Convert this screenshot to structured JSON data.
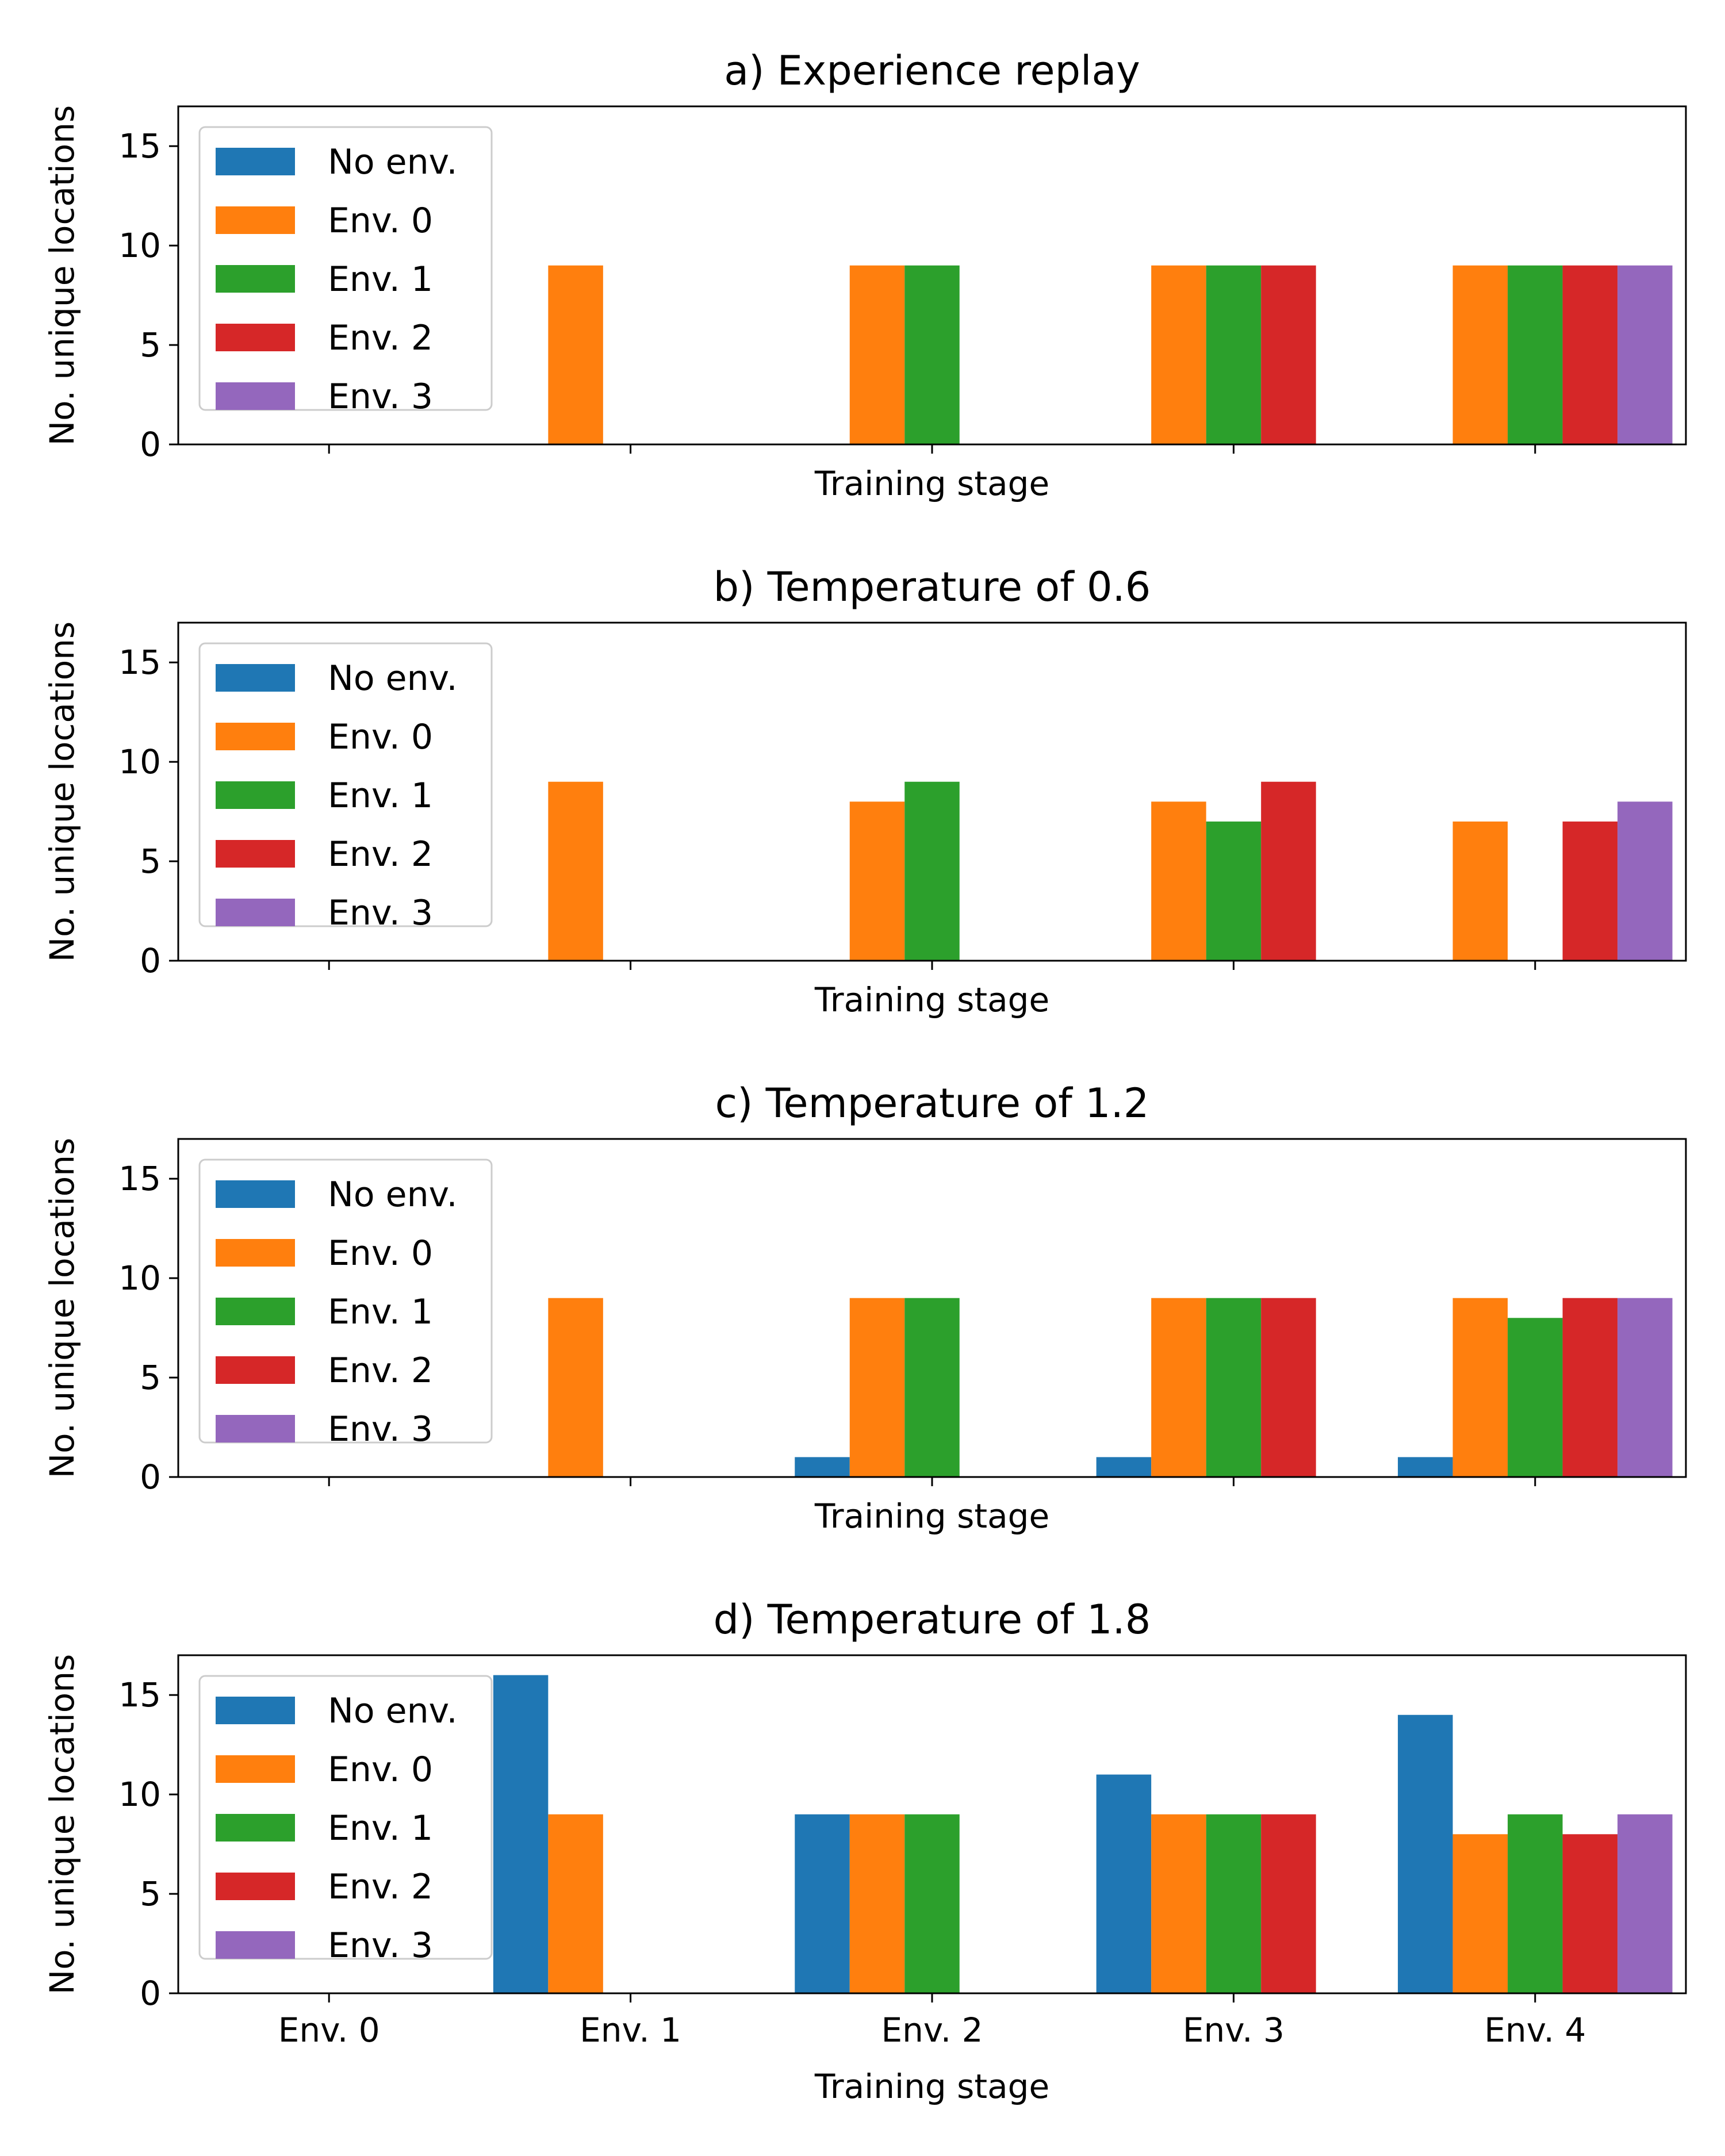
{
  "figure": {
    "xlabel": "Training stage",
    "ylabel": "No. unique locations"
  },
  "colors": {
    "No env.": "#1f77b4",
    "Env. 0": "#ff7f0e",
    "Env. 1": "#2ca02c",
    "Env. 2": "#d62728",
    "Env. 3": "#9467bd"
  },
  "chart_data": [
    {
      "type": "bar",
      "title": "a) Experience replay",
      "xlabel": "Training stage",
      "ylabel": "No. unique locations",
      "categories": [
        "Env. 0",
        "Env. 1",
        "Env. 2",
        "Env. 3",
        "Env. 4"
      ],
      "show_x_tick_labels": false,
      "ylim": [
        0,
        17
      ],
      "yticks": [
        0,
        5,
        10,
        15
      ],
      "grid": false,
      "legend": "top-left",
      "series": [
        {
          "name": "No env.",
          "values": [
            0,
            0,
            0,
            0,
            0
          ]
        },
        {
          "name": "Env. 0",
          "values": [
            null,
            9,
            9,
            9,
            9
          ]
        },
        {
          "name": "Env. 1",
          "values": [
            null,
            null,
            9,
            9,
            9
          ]
        },
        {
          "name": "Env. 2",
          "values": [
            null,
            null,
            null,
            9,
            9
          ]
        },
        {
          "name": "Env. 3",
          "values": [
            null,
            null,
            null,
            null,
            9
          ]
        }
      ]
    },
    {
      "type": "bar",
      "title": "b) Temperature of 0.6",
      "xlabel": "Training stage",
      "ylabel": "No. unique locations",
      "categories": [
        "Env. 0",
        "Env. 1",
        "Env. 2",
        "Env. 3",
        "Env. 4"
      ],
      "show_x_tick_labels": false,
      "ylim": [
        0,
        17
      ],
      "yticks": [
        0,
        5,
        10,
        15
      ],
      "grid": false,
      "legend": "top-left",
      "series": [
        {
          "name": "No env.",
          "values": [
            0,
            0,
            0,
            0,
            0
          ]
        },
        {
          "name": "Env. 0",
          "values": [
            null,
            9,
            8,
            8,
            7
          ]
        },
        {
          "name": "Env. 1",
          "values": [
            null,
            null,
            9,
            7,
            0
          ]
        },
        {
          "name": "Env. 2",
          "values": [
            null,
            null,
            null,
            9,
            7
          ]
        },
        {
          "name": "Env. 3",
          "values": [
            null,
            null,
            null,
            null,
            8
          ]
        }
      ]
    },
    {
      "type": "bar",
      "title": "c) Temperature of 1.2",
      "xlabel": "Training stage",
      "ylabel": "No. unique locations",
      "categories": [
        "Env. 0",
        "Env. 1",
        "Env. 2",
        "Env. 3",
        "Env. 4"
      ],
      "show_x_tick_labels": false,
      "ylim": [
        0,
        17
      ],
      "yticks": [
        0,
        5,
        10,
        15
      ],
      "grid": false,
      "legend": "top-left",
      "series": [
        {
          "name": "No env.",
          "values": [
            0,
            0,
            1,
            1,
            1
          ]
        },
        {
          "name": "Env. 0",
          "values": [
            null,
            9,
            9,
            9,
            9
          ]
        },
        {
          "name": "Env. 1",
          "values": [
            null,
            null,
            9,
            9,
            8
          ]
        },
        {
          "name": "Env. 2",
          "values": [
            null,
            null,
            null,
            9,
            9
          ]
        },
        {
          "name": "Env. 3",
          "values": [
            null,
            null,
            null,
            null,
            9
          ]
        }
      ]
    },
    {
      "type": "bar",
      "title": "d) Temperature of 1.8",
      "xlabel": "Training stage",
      "ylabel": "No. unique locations",
      "categories": [
        "Env. 0",
        "Env. 1",
        "Env. 2",
        "Env. 3",
        "Env. 4"
      ],
      "show_x_tick_labels": true,
      "ylim": [
        0,
        17
      ],
      "yticks": [
        0,
        5,
        10,
        15
      ],
      "grid": false,
      "legend": "top-left",
      "series": [
        {
          "name": "No env.",
          "values": [
            0,
            16,
            9,
            11,
            14
          ]
        },
        {
          "name": "Env. 0",
          "values": [
            null,
            9,
            9,
            9,
            8
          ]
        },
        {
          "name": "Env. 1",
          "values": [
            null,
            null,
            9,
            9,
            9
          ]
        },
        {
          "name": "Env. 2",
          "values": [
            null,
            null,
            null,
            9,
            8
          ]
        },
        {
          "name": "Env. 3",
          "values": [
            null,
            null,
            null,
            null,
            9
          ]
        }
      ]
    }
  ]
}
